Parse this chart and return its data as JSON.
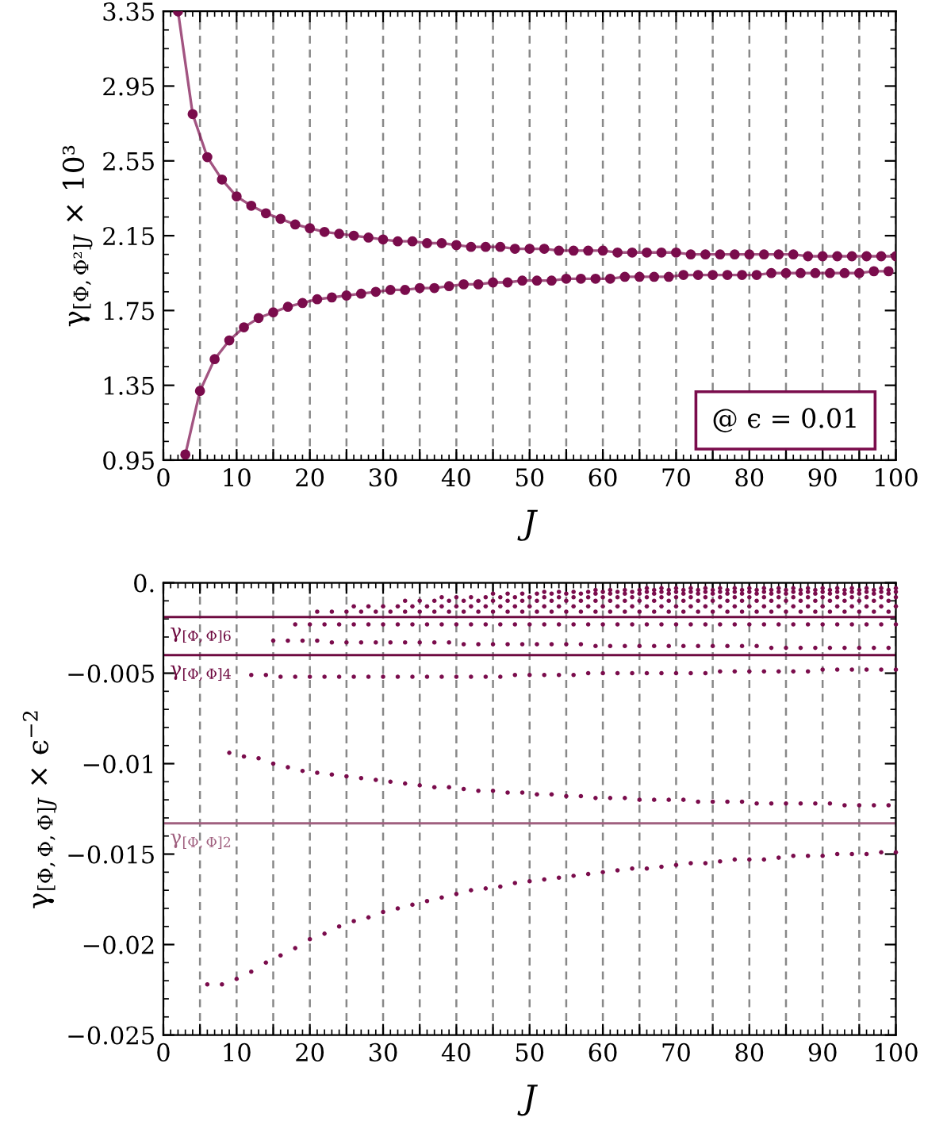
{
  "chart_data": [
    {
      "type": "line",
      "xlabel": "J",
      "ylabel": "γ$_{[Φ,Φ²]J}$ × 10³",
      "xlim": [
        0,
        100
      ],
      "ylim": [
        0.95,
        3.35
      ],
      "xticks": [
        0,
        {
          "value": 5,
          "label": null
        },
        10,
        {
          "value": 15,
          "label": null
        },
        20,
        {
          "value": 25,
          "label": null
        },
        30,
        {
          "value": 35,
          "label": null
        },
        40,
        {
          "value": 45,
          "label": null
        },
        50,
        {
          "value": 55,
          "label": null
        },
        60,
        {
          "value": 65,
          "label": null
        },
        70,
        {
          "value": 75,
          "label": null
        },
        80,
        {
          "value": 85,
          "label": null
        },
        90,
        {
          "value": 95,
          "label": null
        },
        100
      ],
      "yticks": [
        0.95,
        1.35,
        1.75,
        2.15,
        2.55,
        2.95,
        3.35
      ],
      "grid": "x",
      "marker": "circle",
      "line_style": "solid",
      "annotations": [
        "@ ϵ = 0.01"
      ],
      "series": [
        {
          "color": "#7a0c4c",
          "x": [
            2,
            4,
            6,
            8,
            10,
            12,
            14,
            16,
            18,
            20,
            22,
            24,
            26,
            28,
            30,
            32,
            34,
            36,
            38,
            40,
            42,
            44,
            46,
            48,
            50,
            52,
            54,
            56,
            58,
            60,
            62,
            64,
            66,
            68,
            70,
            72,
            74,
            76,
            78,
            80,
            82,
            84,
            86,
            88,
            90,
            92,
            94,
            96,
            98,
            100
          ],
          "values": [
            3.35,
            2.8,
            2.57,
            2.45,
            2.36,
            2.31,
            2.27,
            2.24,
            2.21,
            2.19,
            2.17,
            2.16,
            2.15,
            2.14,
            2.13,
            2.12,
            2.12,
            2.11,
            2.11,
            2.1,
            2.09,
            2.09,
            2.09,
            2.08,
            2.08,
            2.08,
            2.07,
            2.07,
            2.07,
            2.07,
            2.06,
            2.06,
            2.06,
            2.06,
            2.06,
            2.05,
            2.05,
            2.05,
            2.05,
            2.05,
            2.05,
            2.05,
            2.05,
            2.04,
            2.04,
            2.04,
            2.04,
            2.04,
            2.04,
            2.04
          ]
        },
        {
          "color": "#7a0c4c",
          "x": [
            3,
            5,
            7,
            9,
            11,
            13,
            15,
            17,
            19,
            21,
            23,
            25,
            27,
            29,
            31,
            33,
            35,
            37,
            39,
            41,
            43,
            45,
            47,
            49,
            51,
            53,
            55,
            57,
            59,
            61,
            63,
            65,
            67,
            69,
            71,
            73,
            75,
            77,
            79,
            81,
            83,
            85,
            87,
            89,
            91,
            93,
            95,
            97,
            99
          ],
          "values": [
            0.98,
            1.32,
            1.49,
            1.59,
            1.66,
            1.71,
            1.74,
            1.77,
            1.79,
            1.81,
            1.82,
            1.83,
            1.84,
            1.85,
            1.86,
            1.86,
            1.87,
            1.87,
            1.88,
            1.89,
            1.89,
            1.9,
            1.9,
            1.91,
            1.91,
            1.91,
            1.92,
            1.92,
            1.92,
            1.92,
            1.93,
            1.93,
            1.93,
            1.93,
            1.94,
            1.94,
            1.94,
            1.94,
            1.94,
            1.94,
            1.95,
            1.95,
            1.95,
            1.95,
            1.95,
            1.95,
            1.95,
            1.96,
            1.96
          ]
        }
      ]
    },
    {
      "type": "scatter",
      "xlabel": "J",
      "ylabel": "γ$_{[Φ,Φ,Φ]J}$ × ϵ$^{−2}$",
      "xlim": [
        0,
        100
      ],
      "ylim": [
        -0.025,
        0
      ],
      "xticks": [
        0,
        {
          "value": 5,
          "label": null
        },
        10,
        {
          "value": 15,
          "label": null
        },
        20,
        {
          "value": 25,
          "label": null
        },
        30,
        {
          "value": 35,
          "label": null
        },
        40,
        {
          "value": 45,
          "label": null
        },
        50,
        {
          "value": 55,
          "label": null
        },
        60,
        {
          "value": 65,
          "label": null
        },
        70,
        {
          "value": 75,
          "label": null
        },
        80,
        {
          "value": 85,
          "label": null
        },
        90,
        {
          "value": 95,
          "label": null
        },
        100
      ],
      "yticks": [
        {
          "value": -0.025,
          "label": "−0.025"
        },
        {
          "value": -0.02,
          "label": "−0.02"
        },
        {
          "value": -0.015,
          "label": "−0.015"
        },
        {
          "value": -0.01,
          "label": "−0.01"
        },
        {
          "value": -0.005,
          "label": "−0.005"
        },
        {
          "value": 0,
          "label": "0."
        }
      ],
      "grid": "x",
      "marker": "circle",
      "ref_lines": [
        {
          "axis": "y",
          "value": -0.0019,
          "label": "γ$_{[Φ,Φ]6}$",
          "color": "#6e0a40"
        },
        {
          "axis": "y",
          "value": -0.004,
          "label": "γ$_{[Φ,Φ]4}$",
          "color": "#6e0a40"
        },
        {
          "axis": "y",
          "value": -0.0133,
          "label": "γ$_{[Φ,Φ]2}$",
          "color": "#a0607f"
        }
      ],
      "series": [
        {
          "color": "#7a0c4c",
          "x": [
            6,
            8,
            10,
            12,
            14,
            16,
            18,
            20,
            22,
            24,
            26,
            28,
            30,
            32,
            34,
            36,
            38,
            40,
            42,
            44,
            46,
            48,
            50,
            52,
            54,
            56,
            58,
            60,
            62,
            64,
            66,
            68,
            70,
            72,
            74,
            76,
            78,
            80,
            82,
            84,
            86,
            88,
            90,
            92,
            94,
            96,
            98,
            100
          ],
          "values": [
            -0.0222,
            -0.0222,
            -0.0219,
            -0.0215,
            -0.021,
            -0.0206,
            -0.0202,
            -0.0197,
            -0.0194,
            -0.019,
            -0.0187,
            -0.0185,
            -0.0182,
            -0.018,
            -0.0178,
            -0.0176,
            -0.0174,
            -0.0172,
            -0.017,
            -0.0169,
            -0.0168,
            -0.0166,
            -0.0165,
            -0.0164,
            -0.0163,
            -0.0162,
            -0.0161,
            -0.016,
            -0.0159,
            -0.0158,
            -0.0158,
            -0.0157,
            -0.0156,
            -0.0155,
            -0.0155,
            -0.0154,
            -0.0153,
            -0.0153,
            -0.0153,
            -0.0152,
            -0.0151,
            -0.0151,
            -0.0151,
            -0.015,
            -0.015,
            -0.015,
            -0.0149,
            -0.0149
          ]
        },
        {
          "color": "#7a0c4c",
          "x": [
            9,
            11,
            13,
            15,
            17,
            19,
            21,
            23,
            25,
            27,
            29,
            31,
            33,
            35,
            37,
            39,
            41,
            43,
            45,
            47,
            49,
            51,
            53,
            55,
            57,
            59,
            61,
            63,
            65,
            67,
            69,
            71,
            73,
            75,
            77,
            79,
            81,
            83,
            85,
            87,
            89,
            91,
            93,
            95,
            97,
            99
          ],
          "values": [
            -0.0094,
            -0.0096,
            -0.0097,
            -0.01,
            -0.0102,
            -0.0104,
            -0.0105,
            -0.0106,
            -0.0107,
            -0.0108,
            -0.0109,
            -0.011,
            -0.0111,
            -0.0112,
            -0.0113,
            -0.0113,
            -0.0114,
            -0.0115,
            -0.0115,
            -0.0116,
            -0.0116,
            -0.0117,
            -0.0117,
            -0.0118,
            -0.0118,
            -0.0119,
            -0.0119,
            -0.0119,
            -0.012,
            -0.012,
            -0.012,
            -0.012,
            -0.0121,
            -0.0121,
            -0.0121,
            -0.0121,
            -0.0122,
            -0.0122,
            -0.0122,
            -0.0122,
            -0.0122,
            -0.0122,
            -0.0123,
            -0.0123,
            -0.0123,
            -0.0123
          ]
        },
        {
          "color": "#7a0c4c",
          "x": [
            12,
            14,
            16,
            18,
            20,
            22,
            24,
            26,
            28,
            30,
            32,
            34,
            36,
            38,
            40,
            42,
            44,
            46,
            48,
            50,
            52,
            54,
            56,
            58,
            60,
            62,
            64,
            66,
            68,
            70,
            72,
            74,
            76,
            78,
            80,
            82,
            84,
            86,
            88,
            90,
            92,
            94,
            96,
            98,
            100
          ],
          "values": [
            -0.0051,
            -0.0051,
            -0.0052,
            -0.0052,
            -0.0052,
            -0.0052,
            -0.0052,
            -0.0052,
            -0.0052,
            -0.0052,
            -0.0052,
            -0.0052,
            -0.0052,
            -0.0052,
            -0.0052,
            -0.0052,
            -0.0052,
            -0.0052,
            -0.0051,
            -0.0051,
            -0.0051,
            -0.0051,
            -0.0051,
            -0.005,
            -0.005,
            -0.005,
            -0.005,
            -0.005,
            -0.005,
            -0.005,
            -0.005,
            -0.005,
            -0.0049,
            -0.0049,
            -0.0049,
            -0.0049,
            -0.0049,
            -0.0049,
            -0.0049,
            -0.0048,
            -0.0048,
            -0.0048,
            -0.0048,
            -0.0048,
            -0.0048
          ]
        },
        {
          "color": "#7a0c4c",
          "x": [
            15,
            17,
            19,
            21,
            23,
            25,
            27,
            29,
            31,
            33,
            35,
            37,
            39,
            41,
            43,
            45,
            47,
            49,
            51,
            53,
            55,
            57,
            59,
            61,
            63,
            65,
            67,
            69,
            71,
            73,
            75,
            77,
            79,
            81,
            83,
            85,
            87,
            89,
            91,
            93,
            95,
            97,
            99
          ],
          "values": [
            -0.0032,
            -0.0032,
            -0.0032,
            -0.0032,
            -0.0033,
            -0.0033,
            -0.0033,
            -0.0033,
            -0.0033,
            -0.0033,
            -0.0033,
            -0.0033,
            -0.0033,
            -0.0034,
            -0.0034,
            -0.0034,
            -0.0034,
            -0.0034,
            -0.0034,
            -0.0034,
            -0.0034,
            -0.0034,
            -0.0035,
            -0.0035,
            -0.0035,
            -0.0035,
            -0.0035,
            -0.0035,
            -0.0035,
            -0.0035,
            -0.0035,
            -0.0035,
            -0.0035,
            -0.0035,
            -0.0036,
            -0.0036,
            -0.0036,
            -0.0036,
            -0.0036,
            -0.0036,
            -0.0036,
            -0.0036,
            -0.0036
          ]
        },
        {
          "color": "#7a0c4c",
          "x": [
            18,
            20,
            22,
            24,
            26,
            28,
            30,
            32,
            34,
            36,
            38,
            40,
            42,
            44,
            46,
            48,
            50,
            52,
            54,
            56,
            58,
            60,
            62,
            64,
            66,
            68,
            70,
            72,
            74,
            76,
            78,
            80,
            82,
            84,
            86,
            88,
            90,
            92,
            94,
            96,
            98,
            100
          ],
          "values": [
            -0.0023,
            -0.0023,
            -0.0023,
            -0.0023,
            -0.0023,
            -0.0023,
            -0.0023,
            -0.0023,
            -0.0023,
            -0.0023,
            -0.0023,
            -0.0023,
            -0.0023,
            -0.0023,
            -0.0023,
            -0.0023,
            -0.0023,
            -0.0023,
            -0.0023,
            -0.0023,
            -0.0023,
            -0.0023,
            -0.0023,
            -0.0023,
            -0.0023,
            -0.0023,
            -0.0023,
            -0.0023,
            -0.0023,
            -0.0023,
            -0.0023,
            -0.0023,
            -0.0023,
            -0.0023,
            -0.0023,
            -0.0023,
            -0.0023,
            -0.0023,
            -0.0023,
            -0.0023,
            -0.0023,
            -0.0023
          ]
        },
        {
          "color": "#7a0c4c",
          "x": [
            21,
            23,
            25,
            27,
            29,
            31,
            33,
            35,
            37,
            39,
            41,
            43,
            45,
            47,
            49,
            51,
            53,
            55,
            57,
            59,
            61,
            63,
            65,
            67,
            69,
            71,
            73,
            75,
            77,
            79,
            81,
            83,
            85,
            87,
            89,
            91,
            93,
            95,
            97,
            99
          ],
          "values": [
            -0.0016,
            -0.0016,
            -0.0016,
            -0.0016,
            -0.0016,
            -0.0016,
            -0.0016,
            -0.0016,
            -0.0016,
            -0.0016,
            -0.0016,
            -0.0016,
            -0.0016,
            -0.0016,
            -0.0016,
            -0.0016,
            -0.0016,
            -0.0016,
            -0.0016,
            -0.0016,
            -0.0016,
            -0.0016,
            -0.0016,
            -0.0016,
            -0.0016,
            -0.0016,
            -0.0016,
            -0.0016,
            -0.0016,
            -0.0016,
            -0.0016,
            -0.0016,
            -0.0016,
            -0.0016,
            -0.0016,
            -0.0016,
            -0.0016,
            -0.0016,
            -0.0016,
            -0.0016
          ]
        },
        {
          "color": "#7a0c4c",
          "x": [
            26,
            28,
            30,
            32,
            34,
            36,
            38,
            40,
            42,
            44,
            46,
            48,
            50,
            52,
            54,
            56,
            58,
            60,
            62,
            64,
            66,
            68,
            70,
            72,
            74,
            76,
            78,
            80,
            82,
            84,
            86,
            88,
            90,
            92,
            94,
            96,
            98,
            100
          ],
          "values": [
            -0.0013,
            -0.0013,
            -0.0013,
            -0.0013,
            -0.0013,
            -0.0013,
            -0.0013,
            -0.0013,
            -0.0013,
            -0.0013,
            -0.0013,
            -0.0013,
            -0.0013,
            -0.0013,
            -0.0013,
            -0.0013,
            -0.0013,
            -0.0013,
            -0.0013,
            -0.0013,
            -0.0013,
            -0.0013,
            -0.0013,
            -0.0013,
            -0.0013,
            -0.0013,
            -0.0013,
            -0.0013,
            -0.0013,
            -0.0013,
            -0.0013,
            -0.0013,
            -0.0013,
            -0.0013,
            -0.0013,
            -0.0013,
            -0.0013,
            -0.0013
          ]
        },
        {
          "color": "#7a0c4c",
          "x": [
            33,
            35,
            37,
            39,
            41,
            43,
            45,
            47,
            49,
            51,
            53,
            55,
            57,
            59,
            61,
            63,
            65,
            67,
            69,
            71,
            73,
            75,
            77,
            79,
            81,
            83,
            85,
            87,
            89,
            91,
            93,
            95,
            97,
            99
          ],
          "values": [
            -0.001,
            -0.001,
            -0.001,
            -0.001,
            -0.001,
            -0.001,
            -0.001,
            -0.001,
            -0.001,
            -0.001,
            -0.001,
            -0.001,
            -0.001,
            -0.001,
            -0.001,
            -0.001,
            -0.001,
            -0.001,
            -0.001,
            -0.001,
            -0.001,
            -0.001,
            -0.001,
            -0.001,
            -0.001,
            -0.001,
            -0.001,
            -0.001,
            -0.001,
            -0.001,
            -0.001,
            -0.001,
            -0.001,
            -0.001
          ]
        },
        {
          "color": "#7a0c4c",
          "x": [
            38,
            40,
            42,
            44,
            46,
            48,
            50,
            52,
            54,
            56,
            58,
            60,
            62,
            64,
            66,
            68,
            70,
            72,
            74,
            76,
            78,
            80,
            82,
            84,
            86,
            88,
            90,
            92,
            94,
            96,
            98,
            100
          ],
          "values": [
            -0.0008,
            -0.0008,
            -0.0008,
            -0.0008,
            -0.0008,
            -0.0008,
            -0.0008,
            -0.0008,
            -0.0008,
            -0.0008,
            -0.0008,
            -0.0008,
            -0.0008,
            -0.0008,
            -0.0008,
            -0.0008,
            -0.0008,
            -0.0008,
            -0.0008,
            -0.0008,
            -0.0008,
            -0.0008,
            -0.0008,
            -0.0008,
            -0.0008,
            -0.0008,
            -0.0008,
            -0.0008,
            -0.0008,
            -0.0008,
            -0.0008,
            -0.0008
          ]
        },
        {
          "color": "#7a0c4c",
          "x": [
            45,
            47,
            49,
            51,
            53,
            55,
            57,
            59,
            61,
            63,
            65,
            67,
            69,
            71,
            73,
            75,
            77,
            79,
            81,
            83,
            85,
            87,
            89,
            91,
            93,
            95,
            97,
            99
          ],
          "values": [
            -0.0006,
            -0.0006,
            -0.0006,
            -0.0006,
            -0.0006,
            -0.0006,
            -0.0006,
            -0.0006,
            -0.0006,
            -0.0006,
            -0.0006,
            -0.0006,
            -0.0006,
            -0.0006,
            -0.0006,
            -0.0006,
            -0.0006,
            -0.0006,
            -0.0006,
            -0.0006,
            -0.0006,
            -0.0006,
            -0.0006,
            -0.0006,
            -0.0006,
            -0.0006,
            -0.0006,
            -0.0006
          ]
        },
        {
          "color": "#7a0c4c",
          "x": [
            52,
            54,
            56,
            58,
            60,
            62,
            64,
            66,
            68,
            70,
            72,
            74,
            76,
            78,
            80,
            82,
            84,
            86,
            88,
            90,
            92,
            94,
            96,
            98,
            100
          ],
          "values": [
            -0.0005,
            -0.0005,
            -0.0005,
            -0.0005,
            -0.0005,
            -0.0005,
            -0.0005,
            -0.0005,
            -0.0005,
            -0.0005,
            -0.0005,
            -0.0005,
            -0.0005,
            -0.0005,
            -0.0005,
            -0.0005,
            -0.0005,
            -0.0005,
            -0.0005,
            -0.0005,
            -0.0005,
            -0.0005,
            -0.0005,
            -0.0005,
            -0.0005
          ]
        },
        {
          "color": "#7a0c4c",
          "x": [
            59,
            61,
            63,
            65,
            67,
            69,
            71,
            73,
            75,
            77,
            79,
            81,
            83,
            85,
            87,
            89,
            91,
            93,
            95,
            97,
            99
          ],
          "values": [
            -0.0004,
            -0.0004,
            -0.0004,
            -0.0004,
            -0.0004,
            -0.0004,
            -0.0004,
            -0.0004,
            -0.0004,
            -0.0004,
            -0.0004,
            -0.0004,
            -0.0004,
            -0.0004,
            -0.0004,
            -0.0004,
            -0.0004,
            -0.0004,
            -0.0004,
            -0.0004,
            -0.0004
          ]
        },
        {
          "color": "#7a0c4c",
          "x": [
            66,
            68,
            70,
            72,
            74,
            76,
            78,
            80,
            82,
            84,
            86,
            88,
            90,
            92,
            94,
            96,
            98,
            100
          ],
          "values": [
            -0.0003,
            -0.0003,
            -0.0003,
            -0.0003,
            -0.0003,
            -0.0003,
            -0.0003,
            -0.0003,
            -0.0003,
            -0.0003,
            -0.0003,
            -0.0003,
            -0.0003,
            -0.0003,
            -0.0003,
            -0.0003,
            -0.0003,
            -0.0003
          ]
        }
      ]
    }
  ]
}
